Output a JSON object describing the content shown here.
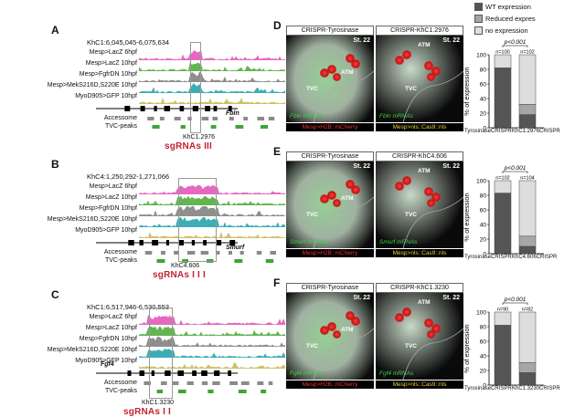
{
  "panels": {
    "A": {
      "letter": "A",
      "coord": "KhC1:6,045,045-6,075,634",
      "tracks": [
        "Mesp>LacZ 6hpf",
        "Mesp>LacZ 10hpf",
        "Mesp>FgfrDN 10hpf",
        "Mesp>MekS216D,S220E 10hpf",
        "MyoD905>GFP 10hpf"
      ],
      "accessome": "Accessome",
      "tvc_peaks": "TVC-peaks",
      "element": "KhC1.2976",
      "gene": "Fbln",
      "sgrnas": "sgRNAs III"
    },
    "B": {
      "letter": "B",
      "coord": "KhC4:1,250,292-1,271,066",
      "tracks": [
        "Mesp>LacZ 6hpf",
        "Mesp>LacZ 10hpf",
        "Mesp>FgfrDN 10hpf",
        "Mesp>MekS216D,S220E 10hpf",
        "MyoD905>GFP 10hpf"
      ],
      "accessome": "Accessome",
      "tvc_peaks": "TVC-peaks",
      "element": "KhC4.606",
      "gene": "Smurf",
      "sgrnas": "sgRNAs I I I"
    },
    "C": {
      "letter": "C",
      "coord": "KhC1:6,517,946-6,530,553",
      "tracks": [
        "Mesp>LacZ 6hpf",
        "Mesp>LacZ 10hpf",
        "Mesp>FgfrDN 10hpf",
        "Mesp>MekS216D,S220E 10hpf",
        "MyoD905>GFP 10hpf"
      ],
      "accessome": "Accessome",
      "tvc_peaks": "TVC-peaks",
      "element": "KhC1.3230",
      "gene": "Fgf4",
      "sgrnas": "sgRNAs I I"
    },
    "D": {
      "letter": "D",
      "left_title": "CRISPR-Tyrosinase",
      "right_title": "CRISPR-KhC1.2976",
      "stage": "St. 22",
      "mrna": "Fbln mRNAs",
      "footer_red": "Mesp>H2B::mCherry",
      "footer_yellow": "Mesp>nls::Cas9::nls",
      "p": "p<0.001",
      "n1": "n=100",
      "n2": "n=102",
      "x1": "TyrosinaseCRISPR",
      "x2": "KhC1.2976CRISPR",
      "wt": [
        82,
        18
      ],
      "reduced": [
        0,
        14
      ],
      "none": [
        18,
        68
      ]
    },
    "E": {
      "letter": "E",
      "left_title": "CRISPR-Tyrosinase",
      "right_title": "CRISPR-KhC4.606",
      "stage": "St. 22",
      "mrna": "Smurf mRNAs",
      "footer_red": "Mesp>H2B::mCherry",
      "footer_yellow": "Mesp>nls::Cas9::nls",
      "p": "p<0.001",
      "n1": "n=102",
      "n2": "n=104",
      "x1": "TyrosinaseCRISPR",
      "x2": "KhC4.606CRISPR",
      "wt": [
        83,
        10
      ],
      "reduced": [
        0,
        14
      ],
      "none": [
        17,
        76
      ]
    },
    "F": {
      "letter": "F",
      "left_title": "CRISPR-Tyrosinase",
      "right_title": "CRISPR-KhC1.3230",
      "stage": "St. 22",
      "mrna": "Fgf4 mRNAs",
      "footer_red": "Mesp>H2B::mCherry",
      "footer_yellow": "Mesp>nls::Cas9::nls",
      "p": "p<0.001",
      "n1": "n=90",
      "n2": "n=82",
      "x1": "TyrosinaseCRISPR",
      "x2": "KhC1.3230CRISPR",
      "wt": [
        82,
        17
      ],
      "reduced": [
        0,
        14
      ],
      "none": [
        18,
        69
      ]
    }
  },
  "cell_labels": {
    "tvc": "TVC",
    "atm": "ATM"
  },
  "legend": {
    "wt": "WT expression",
    "reduced": "Reduced expres",
    "none": "no expression"
  },
  "axis": {
    "ylabel": "% of expression",
    "ticks": [
      "0",
      "20",
      "40",
      "60",
      "80",
      "100"
    ]
  },
  "colors": {
    "wt": "#555555",
    "reduced": "#a6a6a6",
    "none": "#dddddd",
    "lacz6": "#e24fb4",
    "lacz10": "#48a832",
    "fgfr": "#7a7a7a",
    "mek": "#1b9fa8",
    "myod": "#c7b64a"
  },
  "chart_data": [
    {
      "type": "bar",
      "categories": [
        "TyrosinaseCRISPR",
        "KhC1.2976CRISPR"
      ],
      "series": [
        {
          "name": "WT expression",
          "values": [
            82,
            18
          ]
        },
        {
          "name": "Reduced expres",
          "values": [
            0,
            14
          ]
        },
        {
          "name": "no expression",
          "values": [
            18,
            68
          ]
        }
      ],
      "ylabel": "% of expression",
      "ylim": [
        0,
        100
      ],
      "annotations": [
        "p<0.001",
        "n=100",
        "n=102"
      ]
    },
    {
      "type": "bar",
      "categories": [
        "TyrosinaseCRISPR",
        "KhC4.606CRISPR"
      ],
      "series": [
        {
          "name": "WT expression",
          "values": [
            83,
            10
          ]
        },
        {
          "name": "Reduced expres",
          "values": [
            0,
            14
          ]
        },
        {
          "name": "no expression",
          "values": [
            17,
            76
          ]
        }
      ],
      "ylabel": "% of expression",
      "ylim": [
        0,
        100
      ],
      "annotations": [
        "p<0.001",
        "n=102",
        "n=104"
      ]
    },
    {
      "type": "bar",
      "categories": [
        "TyrosinaseCRISPR",
        "KhC1.3230CRISPR"
      ],
      "series": [
        {
          "name": "WT expression",
          "values": [
            82,
            17
          ]
        },
        {
          "name": "Reduced expres",
          "values": [
            0,
            14
          ]
        },
        {
          "name": "no expression",
          "values": [
            18,
            69
          ]
        }
      ],
      "ylabel": "% of expression",
      "ylim": [
        0,
        100
      ],
      "annotations": [
        "p<0.001",
        "n=90",
        "n=82"
      ]
    }
  ]
}
